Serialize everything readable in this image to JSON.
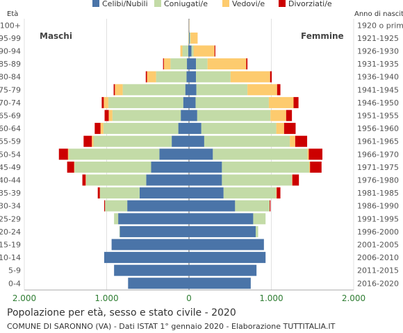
{
  "chart_data": {
    "type": "bar",
    "title": "Popolazione per età, sesso e stato civile - 2020",
    "subtitle": "COMUNE DI SARONNO (VA) - Dati ISTAT 1° gennaio 2020 - Elaborazione TUTTITALIA.IT",
    "left_header": "Età",
    "right_header": "Anno di nascita",
    "male_label": "Maschi",
    "female_label": "Femmine",
    "xlim": [
      -2000,
      2000
    ],
    "x_ticks": [
      -2000,
      -1000,
      0,
      1000,
      2000
    ],
    "x_tick_labels": [
      "2.000",
      "1.000",
      "0",
      "1.000",
      "2.000"
    ],
    "grid": true,
    "legend_position": "top",
    "series": [
      {
        "name": "Celibi/Nubili",
        "color": "#4a74a8"
      },
      {
        "name": "Coniugati/e",
        "color": "#c3dba7"
      },
      {
        "name": "Vedovi/e",
        "color": "#fdcb6e"
      },
      {
        "name": "Divorziati/e",
        "color": "#cc0000"
      }
    ],
    "age_groups": [
      "100+",
      "95-99",
      "90-94",
      "85-89",
      "80-84",
      "75-79",
      "70-74",
      "65-69",
      "60-64",
      "55-59",
      "50-54",
      "45-49",
      "40-44",
      "35-39",
      "30-34",
      "25-29",
      "20-24",
      "15-19",
      "10-14",
      "5-9",
      "0-4"
    ],
    "birth_years": [
      "1920 o prima",
      "1921-1925",
      "1926-1930",
      "1931-1935",
      "1936-1940",
      "1941-1945",
      "1946-1950",
      "1951-1955",
      "1956-1960",
      "1961-1965",
      "1966-1970",
      "1971-1975",
      "1976-1980",
      "1981-1985",
      "1986-1990",
      "1991-1995",
      "1996-2000",
      "2001-2005",
      "2006-2010",
      "2011-2015",
      "2016-2020"
    ],
    "males": [
      [
        0,
        0,
        0,
        0
      ],
      [
        0,
        4,
        4,
        0
      ],
      [
        10,
        70,
        25,
        0
      ],
      [
        25,
        200,
        80,
        10
      ],
      [
        30,
        370,
        110,
        15
      ],
      [
        45,
        760,
        95,
        15
      ],
      [
        70,
        910,
        55,
        25
      ],
      [
        100,
        830,
        45,
        50
      ],
      [
        130,
        910,
        35,
        70
      ],
      [
        210,
        950,
        20,
        100
      ],
      [
        360,
        1100,
        10,
        110
      ],
      [
        460,
        930,
        5,
        85
      ],
      [
        520,
        730,
        5,
        40
      ],
      [
        600,
        480,
        3,
        25
      ],
      [
        750,
        270,
        0,
        10
      ],
      [
        860,
        50,
        0,
        0
      ],
      [
        840,
        5,
        0,
        0
      ],
      [
        940,
        0,
        0,
        0
      ],
      [
        1030,
        0,
        0,
        0
      ],
      [
        910,
        0,
        0,
        0
      ],
      [
        740,
        0,
        0,
        0
      ]
    ],
    "females": [
      [
        2,
        0,
        3,
        0
      ],
      [
        8,
        12,
        85,
        0
      ],
      [
        30,
        25,
        255,
        10
      ],
      [
        85,
        140,
        470,
        15
      ],
      [
        85,
        420,
        480,
        20
      ],
      [
        90,
        620,
        360,
        40
      ],
      [
        80,
        890,
        300,
        60
      ],
      [
        100,
        890,
        190,
        70
      ],
      [
        150,
        910,
        95,
        140
      ],
      [
        185,
        1040,
        65,
        145
      ],
      [
        290,
        1150,
        15,
        165
      ],
      [
        400,
        1060,
        10,
        140
      ],
      [
        400,
        850,
        5,
        80
      ],
      [
        420,
        640,
        5,
        45
      ],
      [
        560,
        420,
        0,
        10
      ],
      [
        780,
        150,
        0,
        0
      ],
      [
        810,
        30,
        0,
        0
      ],
      [
        910,
        0,
        0,
        0
      ],
      [
        930,
        0,
        0,
        0
      ],
      [
        820,
        0,
        0,
        0
      ],
      [
        750,
        0,
        0,
        0
      ]
    ]
  }
}
